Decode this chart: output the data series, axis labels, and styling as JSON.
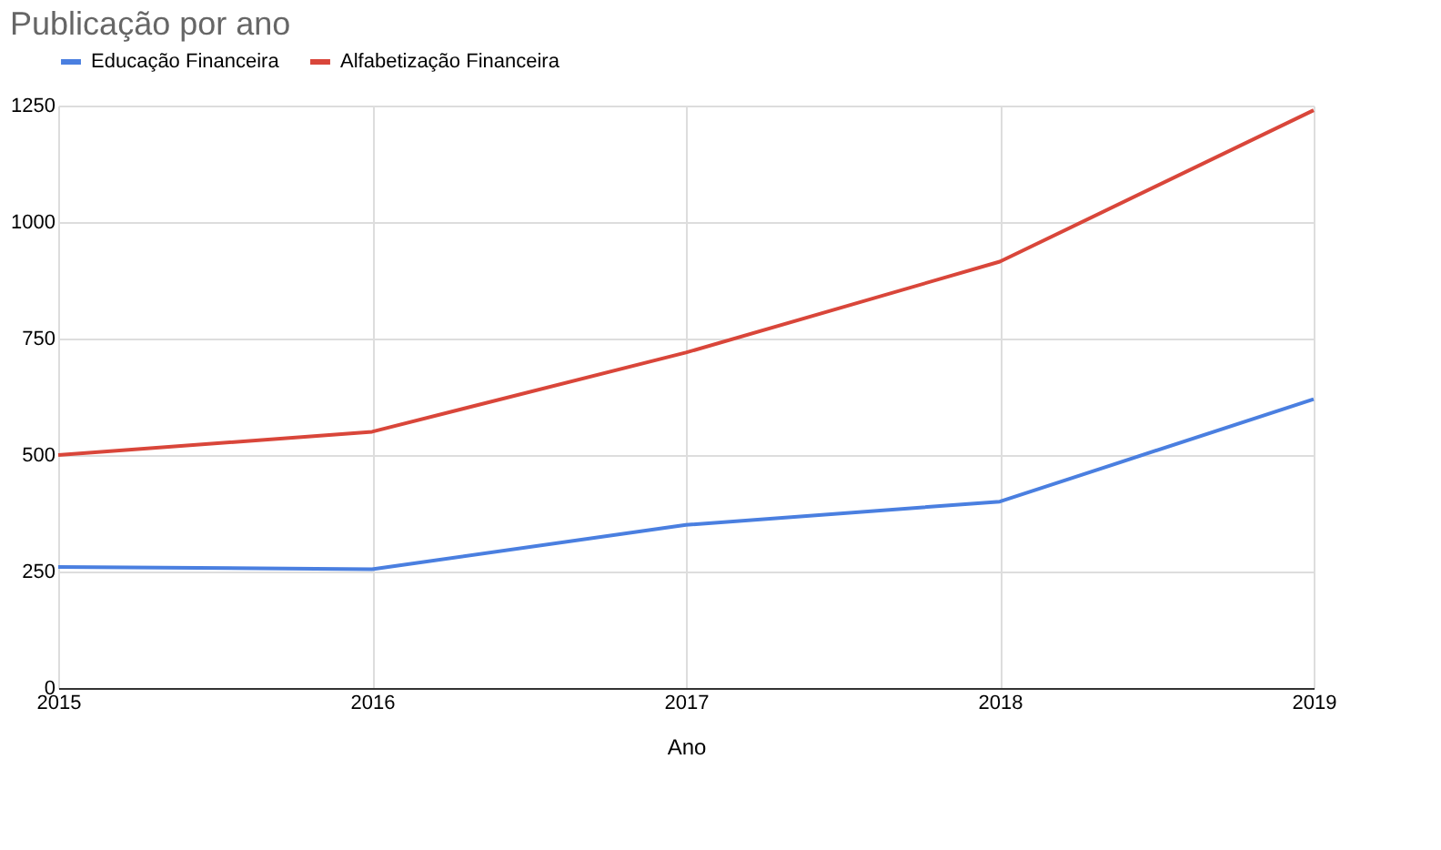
{
  "chart_data": {
    "type": "line",
    "title": "Publicação por ano",
    "xlabel": "Ano",
    "x": [
      2015,
      2016,
      2017,
      2018,
      2019
    ],
    "series": [
      {
        "name": "Educação Financeira",
        "color": "#4a7fe0",
        "values": [
          260,
          255,
          350,
          400,
          620
        ]
      },
      {
        "name": "Alfabetização Financeira",
        "color": "#d9463a",
        "values": [
          500,
          550,
          720,
          915,
          1240
        ]
      }
    ],
    "xlim": [
      2015,
      2019
    ],
    "xticks": [
      2015,
      2016,
      2017,
      2018,
      2019
    ],
    "ylim": [
      0,
      1250
    ],
    "yticks": [
      0,
      250,
      500,
      750,
      1000,
      1250
    ],
    "grid": true,
    "legend": "top",
    "marker": "none",
    "line_style": "solid"
  }
}
